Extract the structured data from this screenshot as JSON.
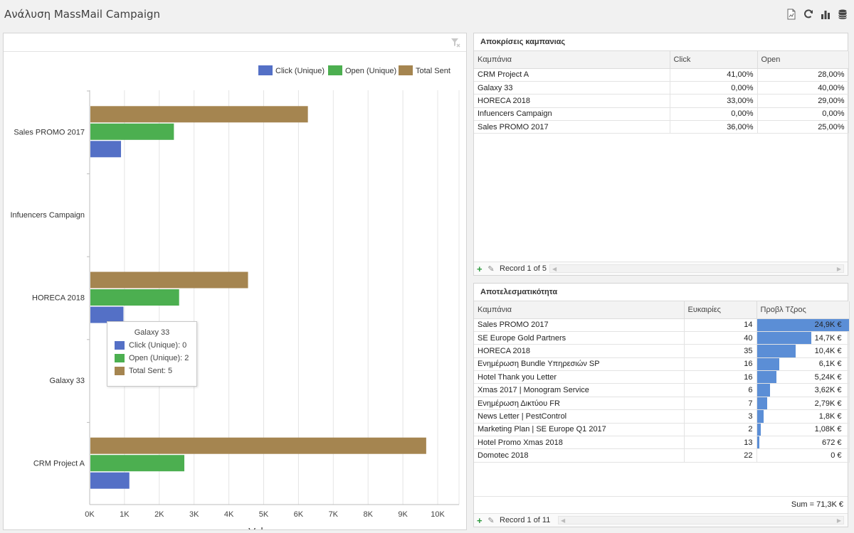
{
  "app": {
    "title": "Ανάλυση MassMail Campaign"
  },
  "toolbar": [
    {
      "name": "export-icon"
    },
    {
      "name": "refresh-icon"
    },
    {
      "name": "bar-chart-icon"
    },
    {
      "name": "database-icon"
    }
  ],
  "colors": {
    "click": "#5470c6",
    "open": "#4caf50",
    "sent": "#a58550",
    "grid_bar": "#5b8ed6"
  },
  "chart_data": {
    "type": "bar",
    "orientation": "horizontal",
    "categories": [
      "Sales PROMO 2017",
      "Infuencers Campaign",
      "HORECA 2018",
      "Galaxy 33",
      "CRM Project A"
    ],
    "series": [
      {
        "name": "Click (Unique)",
        "values": [
          880,
          0,
          950,
          0,
          1120
        ]
      },
      {
        "name": "Open (Unique)",
        "values": [
          2400,
          0,
          2550,
          2,
          2700
        ]
      },
      {
        "name": "Total Sent",
        "values": [
          6250,
          0,
          4530,
          5,
          9650
        ]
      }
    ],
    "xlabel": "Values",
    "ylabel": "",
    "xlim": [
      0,
      10500
    ],
    "xticks": [
      "0K",
      "1K",
      "2K",
      "3K",
      "4K",
      "5K",
      "6K",
      "7K",
      "8K",
      "9K",
      "10K"
    ],
    "grid": true,
    "legend": "top-right",
    "tooltip": {
      "title": "Galaxy 33",
      "rows": [
        "Click (Unique): 0",
        "Open (Unique): 2",
        "Total Sent: 5"
      ]
    }
  },
  "responses": {
    "title": "Αποκρίσεις καμπανιας",
    "columns": [
      "Καμπάνια",
      "Click",
      "Open"
    ],
    "rows": [
      [
        "CRM Project A",
        "41,00%",
        "28,00%"
      ],
      [
        "Galaxy 33",
        "0,00%",
        "40,00%"
      ],
      [
        "HORECA 2018",
        "33,00%",
        "29,00%"
      ],
      [
        "Infuencers Campaign",
        "0,00%",
        "0,00%"
      ],
      [
        "Sales PROMO 2017",
        "36,00%",
        "25,00%"
      ]
    ],
    "record": "Record 1 of 5"
  },
  "efficiency": {
    "title": "Αποτελεσματικότητα",
    "columns": [
      "Καμπάνια",
      "Ευκαιρίες",
      "Προβλ Τζρος"
    ],
    "rows": [
      {
        "name": "Sales PROMO 2017",
        "opps": "14",
        "amount": "24,9K €",
        "fraction": 1.0
      },
      {
        "name": "SE Europe Gold Partners",
        "opps": "40",
        "amount": "14,7K €",
        "fraction": 0.59
      },
      {
        "name": "HORECA 2018",
        "opps": "35",
        "amount": "10,4K €",
        "fraction": 0.42
      },
      {
        "name": "Ενημέρωση Bundle Υπηρεσιών SP",
        "opps": "16",
        "amount": "6,1K €",
        "fraction": 0.245
      },
      {
        "name": "Hotel Thank you Letter",
        "opps": "16",
        "amount": "5,24K €",
        "fraction": 0.21
      },
      {
        "name": "Xmas 2017 | Monogram Service",
        "opps": "6",
        "amount": "3,62K €",
        "fraction": 0.145
      },
      {
        "name": "Ενημέρωση Δικτύου FR",
        "opps": "7",
        "amount": "2,79K €",
        "fraction": 0.112
      },
      {
        "name": "News Letter | PestControl",
        "opps": "3",
        "amount": "1,8K €",
        "fraction": 0.072
      },
      {
        "name": "Marketing Plan | SE Europe Q1 2017",
        "opps": "2",
        "amount": "1,08K €",
        "fraction": 0.043
      },
      {
        "name": " Hotel Promo Xmas 2018",
        "opps": "13",
        "amount": "672 €",
        "fraction": 0.027
      },
      {
        "name": "Domotec 2018",
        "opps": "22",
        "amount": "0 €",
        "fraction": 0
      }
    ],
    "sum": "Sum = 71,3K €",
    "record": "Record 1 of 11"
  }
}
